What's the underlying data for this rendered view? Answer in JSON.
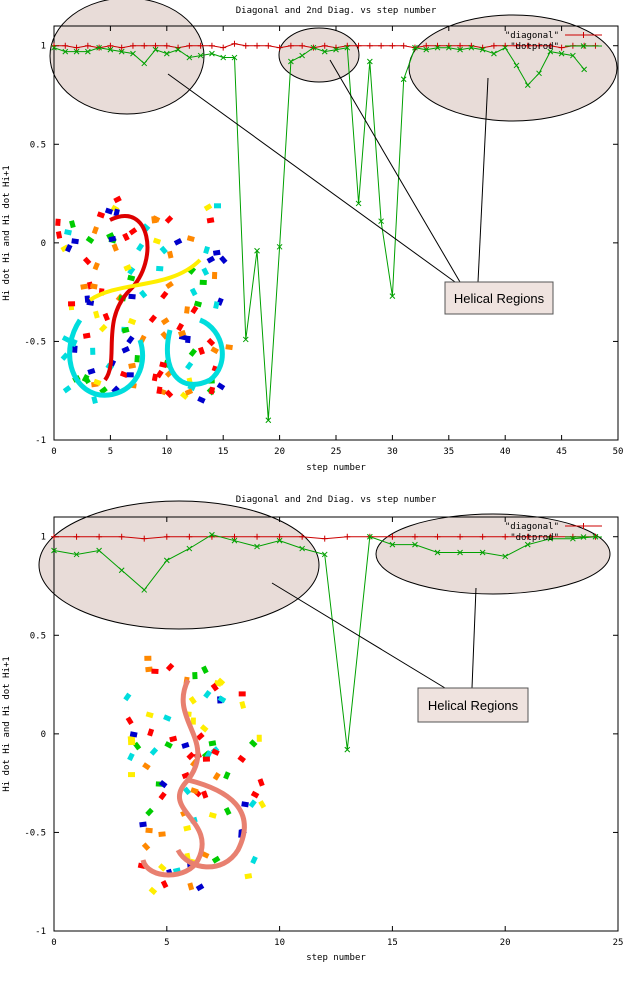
{
  "colors": {
    "diagonal": "#cc0000",
    "dotprod": "#00a000",
    "ellipse_fill": "#e8dcd8",
    "callout_fill": "#efe3df",
    "axis": "#000000"
  },
  "chart_data": [
    {
      "type": "line",
      "title": "Diagonal and 2nd Diag. vs step number",
      "xlabel": "step number",
      "ylabel": "Hi dot Hi and Hi dot Hi+1",
      "xlim": [
        0,
        50
      ],
      "ylim": [
        -1,
        1.1
      ],
      "xticks": [
        "0",
        "5",
        "10",
        "15",
        "20",
        "25",
        "30",
        "35",
        "40",
        "45",
        "50"
      ],
      "yticks": [
        "-1",
        "-0.5",
        "0",
        "0.5",
        "1"
      ],
      "legend_position": "top-right",
      "annotation": "Helical Regions",
      "inset_image": "rna-ribbon-structure",
      "series": [
        {
          "name": "\"diagonal\"",
          "color": "#cc0000",
          "x": [
            0,
            1,
            2,
            3,
            4,
            5,
            6,
            7,
            8,
            9,
            10,
            11,
            12,
            13,
            14,
            15,
            16,
            17,
            18,
            19,
            20,
            21,
            22,
            23,
            24,
            25,
            26,
            27,
            28,
            29,
            30,
            31,
            32,
            33,
            34,
            35,
            36,
            37,
            38,
            39,
            40,
            41,
            42,
            43,
            44,
            45,
            46,
            47,
            48
          ],
          "values": [
            1,
            1,
            0.99,
            1,
            0.99,
            1,
            0.99,
            1,
            1,
            1,
            1,
            0.99,
            1,
            1,
            1,
            0.99,
            1.01,
            1,
            1,
            1,
            0.99,
            1,
            1,
            0.99,
            1,
            0.99,
            1,
            1,
            1,
            1,
            1,
            1,
            0.99,
            1,
            1,
            1,
            1,
            1,
            0.99,
            1,
            1,
            1,
            1,
            1,
            1,
            0.99,
            1,
            1,
            1
          ]
        },
        {
          "name": "\"dotprod\"",
          "color": "#00a000",
          "x": [
            0,
            1,
            2,
            3,
            4,
            5,
            6,
            7,
            8,
            9,
            10,
            11,
            12,
            13,
            14,
            15,
            16,
            17,
            18,
            19,
            20,
            21,
            22,
            23,
            24,
            25,
            26,
            27,
            28,
            29,
            30,
            31,
            32,
            33,
            34,
            35,
            36,
            37,
            38,
            39,
            40,
            41,
            42,
            43,
            44,
            45,
            46,
            47
          ],
          "values": [
            0.99,
            0.97,
            0.97,
            0.97,
            0.99,
            0.98,
            0.97,
            0.96,
            0.91,
            0.98,
            0.96,
            0.98,
            0.94,
            0.95,
            0.96,
            0.94,
            0.94,
            -0.49,
            -0.04,
            -0.9,
            -0.02,
            0.92,
            0.95,
            0.99,
            0.97,
            0.98,
            0.99,
            0.2,
            0.92,
            0.11,
            -0.27,
            0.83,
            0.99,
            0.98,
            0.99,
            0.99,
            0.98,
            0.99,
            0.98,
            0.96,
            0.99,
            0.9,
            0.8,
            0.86,
            0.97,
            0.96,
            0.95,
            0.88
          ]
        }
      ]
    },
    {
      "type": "line",
      "title": "Diagonal and 2nd Diag. vs step number",
      "xlabel": "step number",
      "ylabel": "Hi dot Hi and Hi dot Hi+1",
      "xlim": [
        0,
        25
      ],
      "ylim": [
        -1,
        1.1
      ],
      "xticks": [
        "0",
        "5",
        "10",
        "15",
        "20",
        "25"
      ],
      "yticks": [
        "-1",
        "-0.5",
        "0",
        "0.5",
        "1"
      ],
      "legend_position": "top-right",
      "annotation": "Helical Regions",
      "inset_image": "rna-ribbon-structure",
      "series": [
        {
          "name": "\"diagonal\"",
          "color": "#cc0000",
          "x": [
            0,
            1,
            2,
            3,
            4,
            5,
            6,
            7,
            8,
            9,
            10,
            11,
            12,
            13,
            14,
            15,
            16,
            17,
            18,
            19,
            20,
            21,
            22,
            23,
            24
          ],
          "values": [
            1,
            1,
            1,
            1,
            0.99,
            1,
            1,
            1,
            1,
            1,
            1,
            1,
            0.99,
            1,
            1,
            1,
            1,
            1,
            1,
            1,
            1,
            1,
            1,
            1,
            1
          ]
        },
        {
          "name": "\"dotprod\"",
          "color": "#00a000",
          "x": [
            0,
            1,
            2,
            3,
            4,
            5,
            6,
            7,
            8,
            9,
            10,
            11,
            12,
            13,
            14,
            15,
            16,
            17,
            18,
            19,
            20,
            21,
            22,
            23,
            24
          ],
          "values": [
            0.93,
            0.91,
            0.93,
            0.83,
            0.73,
            0.88,
            0.94,
            1.01,
            0.98,
            0.95,
            0.98,
            0.94,
            0.91,
            -0.08,
            1,
            0.96,
            0.96,
            0.92,
            0.92,
            0.92,
            0.9,
            0.96,
            0.99,
            0.99,
            1
          ]
        }
      ]
    }
  ]
}
